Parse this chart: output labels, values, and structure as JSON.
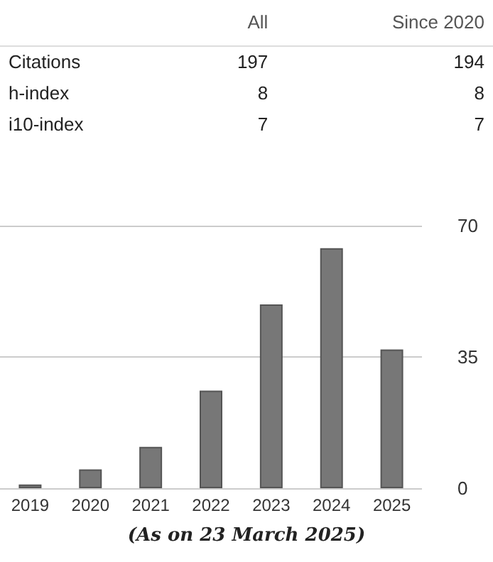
{
  "chart_data": [
    {
      "type": "other",
      "categories": [
        "Citations",
        "h-index",
        "i10-index"
      ],
      "data_labels": true,
      "series": [
        {
          "name": "All",
          "values": [
            197,
            8,
            7
          ]
        },
        {
          "name": "Since 2020",
          "values": [
            194,
            8,
            7
          ]
        }
      ]
    },
    {
      "type": "bar",
      "categories": [
        "2019",
        "2020",
        "2021",
        "2022",
        "2023",
        "2024",
        "2025"
      ],
      "values": [
        1,
        5,
        11,
        26,
        49,
        64,
        37
      ],
      "color": "#777777",
      "ylim": [
        0,
        70
      ],
      "yticks": [
        0,
        35,
        70
      ],
      "grid": "y",
      "annotations": [
        "(As on 23 March 2025)"
      ]
    }
  ]
}
